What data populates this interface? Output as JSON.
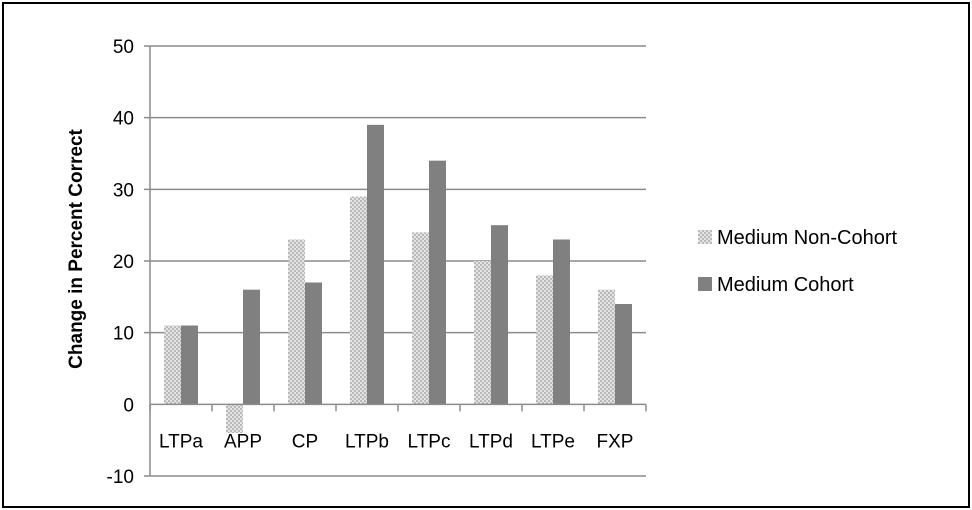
{
  "chart_data": {
    "type": "bar",
    "categories": [
      "LTPa",
      "APP",
      "CP",
      "LTPb",
      "LTPc",
      "LTPd",
      "LTPe",
      "FXP"
    ],
    "series": [
      {
        "name": "Medium Non-Cohort",
        "values": [
          11,
          -4,
          23,
          29,
          24,
          20,
          18,
          16
        ],
        "color": "#d8d8d8",
        "pattern": "checker"
      },
      {
        "name": "Medium Cohort",
        "values": [
          11,
          16,
          17,
          39,
          34,
          25,
          23,
          14
        ],
        "color": "#808080",
        "pattern": "solid"
      }
    ],
    "title": "",
    "xlabel": "",
    "ylabel": "Change in Percent Correct",
    "ylim": [
      -10,
      50
    ],
    "yticks": [
      -10,
      0,
      10,
      20,
      30,
      40,
      50
    ],
    "grid": "horizontal",
    "legend_position": "right"
  }
}
